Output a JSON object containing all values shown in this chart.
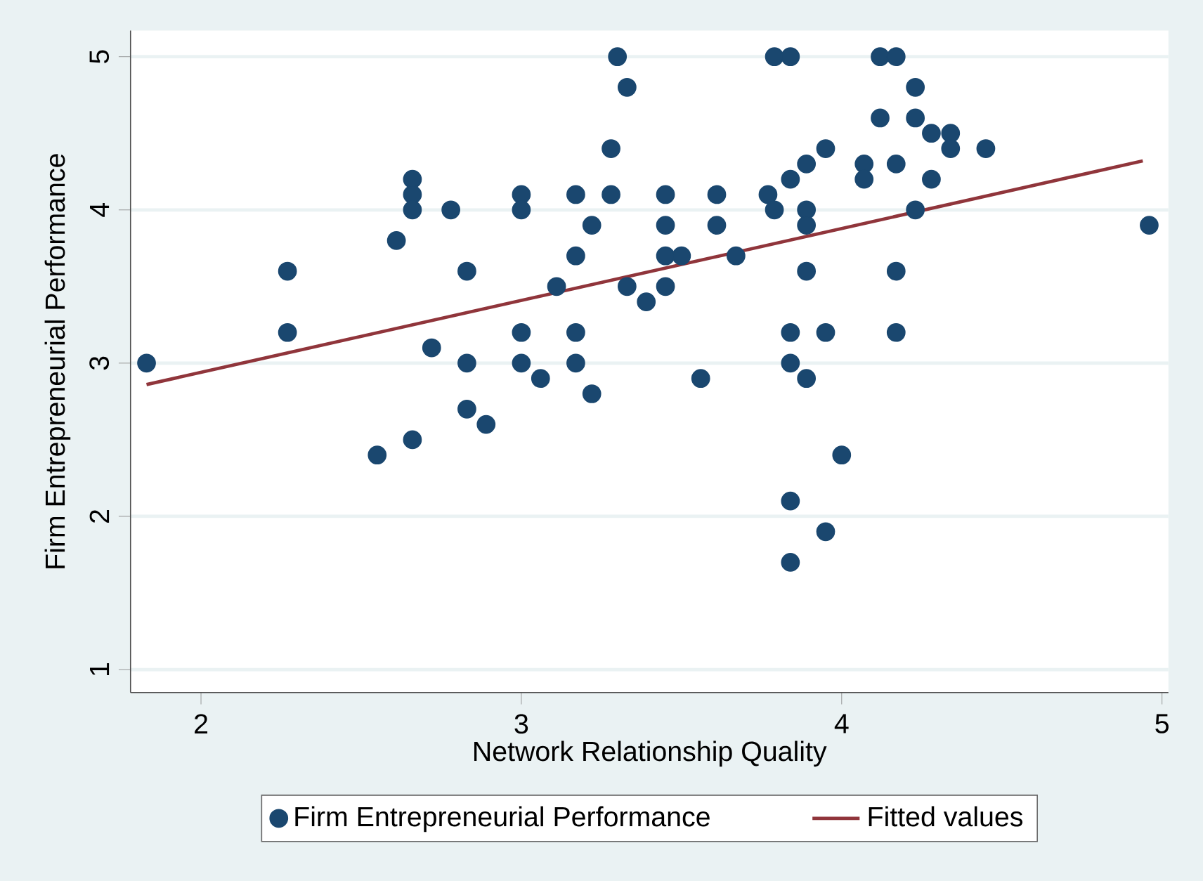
{
  "chart_data": {
    "type": "scatter",
    "xlabel": "Network Relationship Quality",
    "ylabel": "Firm Entrepreneurial Performance",
    "xlim": [
      1.78,
      5.02
    ],
    "ylim": [
      0.85,
      5.17
    ],
    "xticks": [
      2,
      3,
      4,
      5
    ],
    "yticks": [
      1,
      2,
      3,
      4,
      5
    ],
    "grid": "y",
    "legend": "bottom",
    "series": [
      {
        "name": "Firm Entrepreneurial Performance",
        "type": "scatter",
        "marker": "circle",
        "color": "#1a476f",
        "x": [
          1.83,
          2.27,
          2.27,
          2.55,
          2.61,
          2.66,
          2.66,
          2.66,
          2.66,
          2.72,
          2.78,
          2.83,
          2.83,
          2.83,
          2.89,
          3.0,
          3.0,
          3.0,
          3.0,
          3.06,
          3.11,
          3.17,
          3.17,
          3.17,
          3.17,
          3.22,
          3.22,
          3.28,
          3.28,
          3.3,
          3.33,
          3.33,
          3.39,
          3.45,
          3.45,
          3.45,
          3.45,
          3.5,
          3.56,
          3.61,
          3.61,
          3.67,
          3.77,
          3.79,
          3.79,
          3.84,
          3.84,
          3.84,
          3.84,
          3.84,
          3.84,
          3.89,
          3.89,
          3.89,
          3.89,
          3.89,
          3.95,
          3.95,
          3.95,
          4.0,
          4.07,
          4.07,
          4.12,
          4.12,
          4.17,
          4.17,
          4.17,
          4.17,
          4.23,
          4.23,
          4.23,
          4.28,
          4.28,
          4.34,
          4.34,
          4.45,
          4.96
        ],
        "values": [
          3.0,
          3.6,
          3.2,
          2.4,
          3.8,
          4.2,
          4.1,
          4.0,
          2.5,
          3.1,
          4.0,
          3.6,
          3.0,
          2.7,
          2.6,
          4.1,
          4.0,
          3.2,
          3.0,
          2.9,
          3.5,
          3.7,
          3.2,
          3.0,
          4.1,
          3.9,
          2.8,
          4.4,
          4.1,
          5.0,
          4.8,
          3.5,
          3.4,
          4.1,
          3.9,
          3.7,
          3.5,
          3.7,
          2.9,
          4.1,
          3.9,
          3.7,
          4.1,
          4.0,
          5.0,
          5.0,
          4.2,
          3.2,
          3.0,
          2.1,
          1.7,
          4.3,
          4.0,
          3.9,
          3.6,
          2.9,
          4.4,
          3.2,
          1.9,
          2.4,
          4.3,
          4.2,
          5.0,
          4.6,
          5.0,
          4.3,
          3.6,
          3.2,
          4.8,
          4.6,
          4.0,
          4.5,
          4.2,
          4.5,
          4.4,
          4.4,
          3.9
        ]
      },
      {
        "name": "Fitted values",
        "type": "line",
        "marker": "none",
        "line_style": "solid",
        "color": "#90353b",
        "x": [
          1.83,
          4.94
        ],
        "values": [
          2.86,
          4.32
        ]
      }
    ]
  }
}
